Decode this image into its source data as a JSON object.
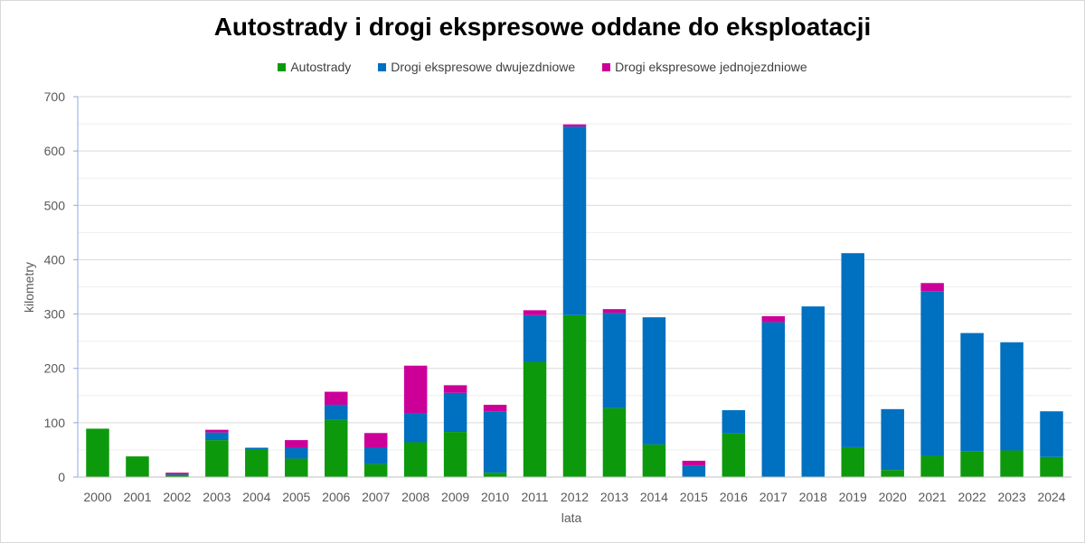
{
  "chart_data": {
    "type": "bar",
    "stacked": true,
    "title": "Autostrady i drogi ekspresowe oddane do eksploatacji",
    "xlabel": "lata",
    "ylabel": "kilometry",
    "ylim": [
      0,
      700
    ],
    "y_ticks": [
      0,
      100,
      200,
      300,
      400,
      500,
      600,
      700
    ],
    "grid": "horizontal",
    "legend_position": "top",
    "categories": [
      "2000",
      "2001",
      "2002",
      "2003",
      "2004",
      "2005",
      "2006",
      "2007",
      "2008",
      "2009",
      "2010",
      "2011",
      "2012",
      "2013",
      "2014",
      "2015",
      "2016",
      "2017",
      "2018",
      "2019",
      "2020",
      "2021",
      "2022",
      "2023",
      "2024"
    ],
    "series": [
      {
        "name": "Autostrady",
        "color": "#0c9a0c",
        "values": [
          89,
          38,
          4,
          68,
          50,
          34,
          105,
          24,
          64,
          83,
          8,
          212,
          298,
          127,
          60,
          0,
          80,
          0,
          0,
          55,
          13,
          39,
          47,
          49,
          37
        ]
      },
      {
        "name": "Drogi ekspresowe dwujezdniowe",
        "color": "#0070c0",
        "values": [
          0,
          0,
          1,
          14,
          4,
          20,
          28,
          30,
          54,
          72,
          113,
          86,
          347,
          175,
          234,
          21,
          43,
          285,
          314,
          357,
          112,
          303,
          218,
          199,
          84
        ]
      },
      {
        "name": "Drogi ekspresowe jednojezdniowe",
        "color": "#cc0099",
        "values": [
          0,
          0,
          3,
          5,
          0,
          14,
          24,
          27,
          87,
          14,
          12,
          9,
          4,
          7,
          0,
          9,
          0,
          11,
          0,
          0,
          0,
          15,
          0,
          0,
          0
        ]
      }
    ]
  }
}
